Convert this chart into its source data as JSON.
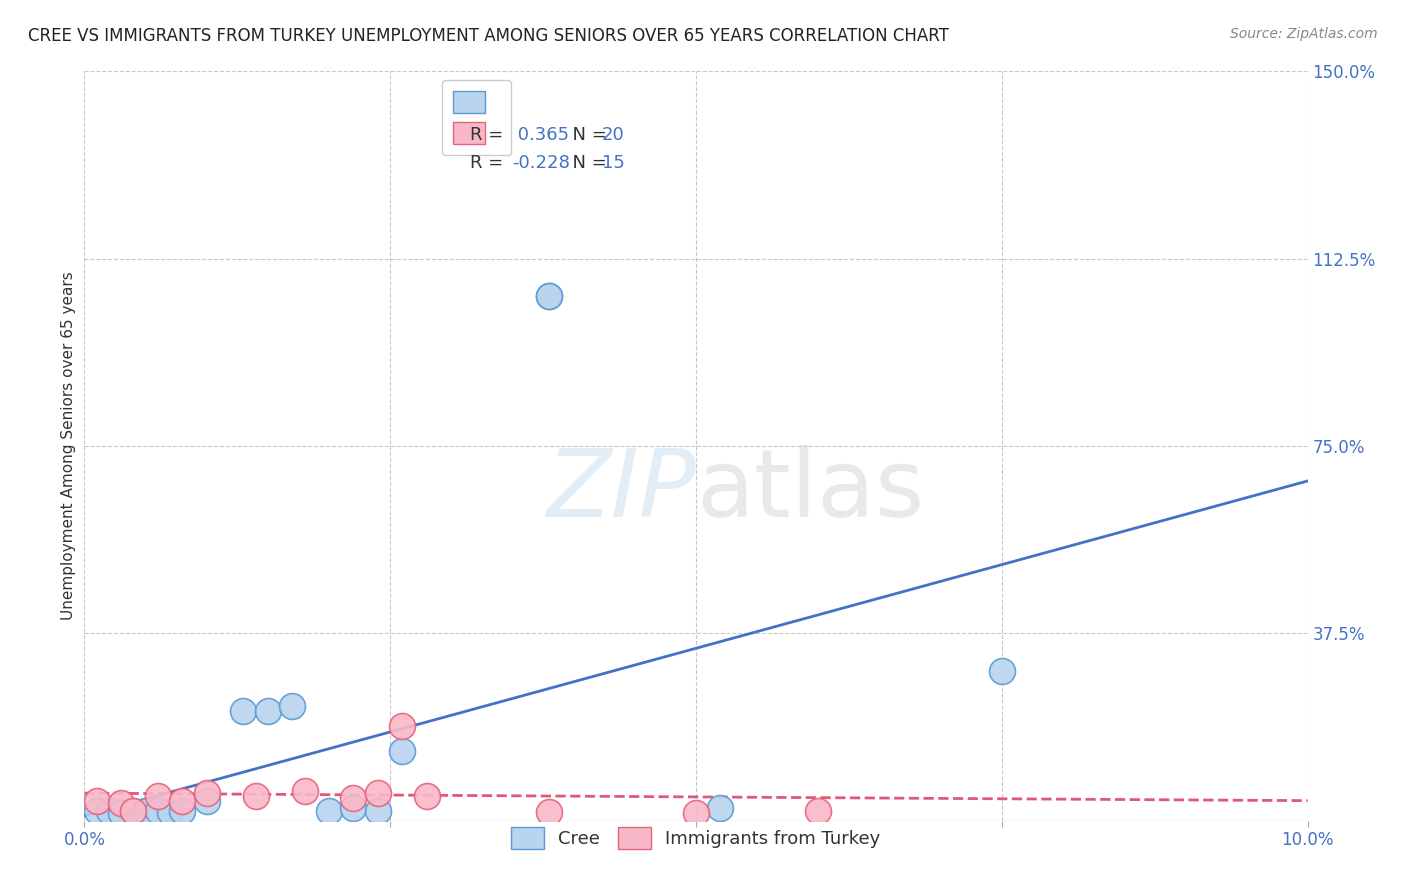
{
  "title": "CREE VS IMMIGRANTS FROM TURKEY UNEMPLOYMENT AMONG SENIORS OVER 65 YEARS CORRELATION CHART",
  "source": "Source: ZipAtlas.com",
  "ylabel": "Unemployment Among Seniors over 65 years",
  "watermark_zip": "ZIP",
  "watermark_atlas": "atlas",
  "xlim": [
    0.0,
    0.1
  ],
  "ylim": [
    0.0,
    1.5
  ],
  "xticks": [
    0.0,
    0.025,
    0.05,
    0.075,
    0.1
  ],
  "xtick_labels": [
    "0.0%",
    "",
    "",
    "",
    "10.0%"
  ],
  "ytick_labels": [
    "",
    "37.5%",
    "75.0%",
    "112.5%",
    "150.0%"
  ],
  "yticks": [
    0.0,
    0.375,
    0.75,
    1.125,
    1.5
  ],
  "cree_R": 0.365,
  "cree_N": 20,
  "turkey_R": -0.228,
  "turkey_N": 15,
  "cree_color": "#b8d4ee",
  "turkey_color": "#f9b8c8",
  "cree_edge_color": "#5b9bd5",
  "turkey_edge_color": "#e8637a",
  "cree_line_color": "#4472c4",
  "turkey_line_color": "#e05878",
  "legend_label_cree": "Cree",
  "legend_label_turkey": "Immigrants from Turkey",
  "cree_x": [
    0.001,
    0.002,
    0.003,
    0.004,
    0.005,
    0.006,
    0.007,
    0.008,
    0.01,
    0.013,
    0.015,
    0.017,
    0.02,
    0.022,
    0.024,
    0.026,
    0.038,
    0.038,
    0.052,
    0.075
  ],
  "cree_y": [
    0.02,
    0.02,
    0.015,
    0.02,
    0.02,
    0.02,
    0.018,
    0.02,
    0.04,
    0.22,
    0.22,
    0.23,
    0.02,
    0.025,
    0.02,
    0.14,
    1.05,
    1.05,
    0.025,
    0.3
  ],
  "turkey_x": [
    0.001,
    0.003,
    0.004,
    0.006,
    0.008,
    0.01,
    0.014,
    0.018,
    0.022,
    0.024,
    0.026,
    0.028,
    0.038,
    0.05,
    0.06
  ],
  "turkey_y": [
    0.04,
    0.035,
    0.02,
    0.05,
    0.04,
    0.055,
    0.05,
    0.06,
    0.045,
    0.055,
    0.19,
    0.05,
    0.018,
    0.015,
    0.02
  ],
  "cree_line_x": [
    0.0,
    0.1
  ],
  "cree_line_y": [
    0.01,
    0.68
  ],
  "turkey_line_x": [
    0.0,
    0.1
  ],
  "turkey_line_y": [
    0.055,
    0.04
  ],
  "background_color": "#ffffff",
  "grid_color": "#bbbbbb",
  "blue_text_color": "#4472c4",
  "R_N_color": "#4472c4"
}
